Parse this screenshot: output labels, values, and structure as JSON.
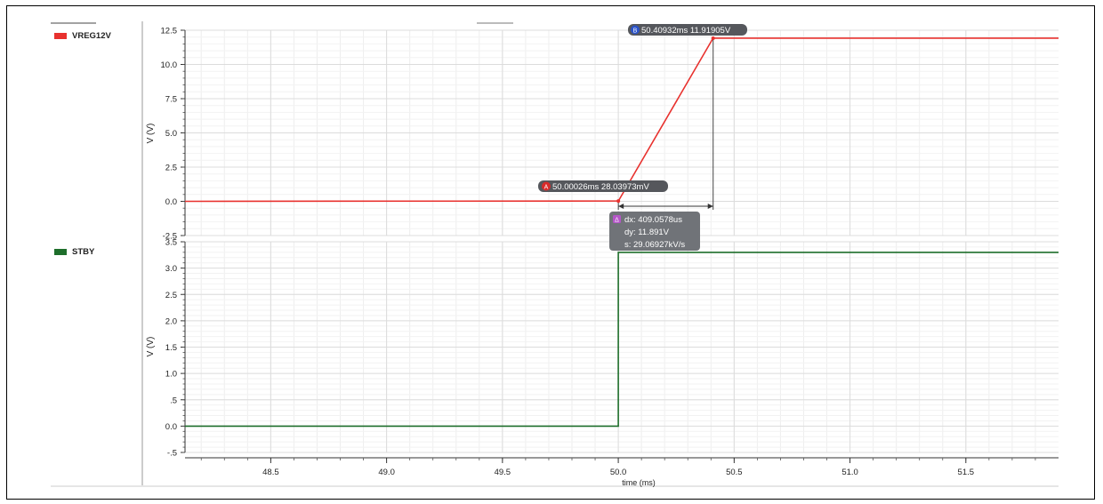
{
  "chart_data": [
    {
      "type": "line",
      "legend": "left",
      "grid": true,
      "ylabel": "V (V)",
      "xlim": [
        48.13,
        51.9
      ],
      "ylim": [
        -2.5,
        12.5
      ],
      "yticks": [
        12.5,
        10.0,
        7.5,
        5.0,
        2.5,
        0.0,
        -2.5
      ],
      "ytick_labels": [
        "12.5",
        "10.0",
        "7.5",
        "5.0",
        "2.5",
        "0.0",
        "-2.5"
      ],
      "series": [
        {
          "name": "VREG12V",
          "color": "#e8312e",
          "x": [
            48.13,
            50.00026,
            50.40932,
            51.9
          ],
          "y": [
            0.0,
            0.02803973,
            11.91905,
            11.91905
          ]
        }
      ],
      "markers": [
        {
          "symbol": "A",
          "label": "50.00026ms 28.03973mV",
          "x": 50.00026,
          "y": 0.02803973
        },
        {
          "symbol": "B",
          "label": "50.40932ms 11.91905V",
          "x": 50.40932,
          "y": 11.91905
        }
      ],
      "delta": {
        "symbol": "Δ",
        "lines": [
          "dx: 409.0578us",
          "dy: 11.891V",
          "s: 29.06927kV/s"
        ]
      }
    },
    {
      "type": "line",
      "legend": "left",
      "grid": true,
      "xlabel": "time (ms)",
      "ylabel": "V (V)",
      "xlim": [
        48.13,
        51.9
      ],
      "ylim": [
        -0.5,
        3.5
      ],
      "xticks": [
        48.5,
        49.0,
        49.5,
        50.0,
        50.5,
        51.0,
        51.5
      ],
      "xtick_labels": [
        "48.5",
        "49.0",
        "49.5",
        "50.0",
        "50.5",
        "51.0",
        "51.5"
      ],
      "yticks": [
        3.5,
        3.0,
        2.5,
        2.0,
        1.5,
        1.0,
        0.5,
        0.0,
        -0.5
      ],
      "ytick_labels": [
        "3.5",
        "3.0",
        "2.5",
        "2.0",
        "1.5",
        "1.0",
        ".5",
        "0.0",
        "-.5"
      ],
      "series": [
        {
          "name": "STBY",
          "color": "#1e6e2b",
          "x": [
            48.13,
            50.0,
            50.0,
            51.9
          ],
          "y": [
            0.0,
            0.0,
            3.3,
            3.3
          ]
        }
      ]
    }
  ]
}
